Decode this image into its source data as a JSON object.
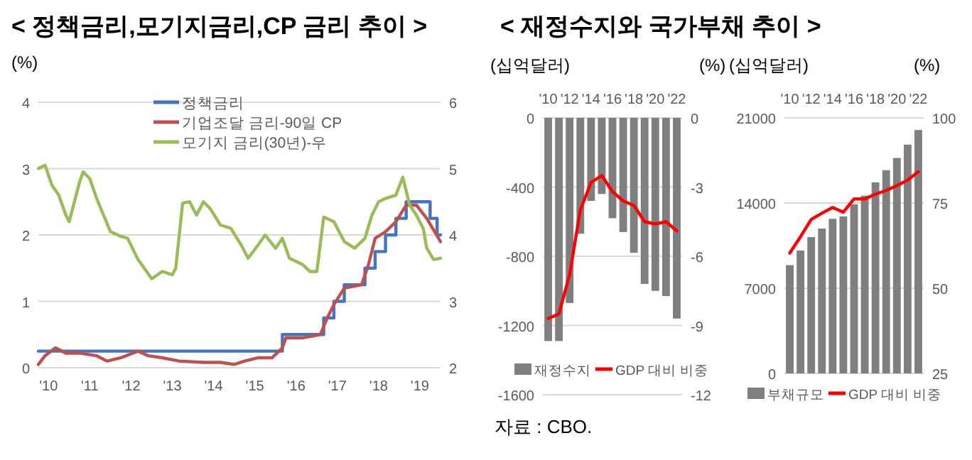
{
  "chart_data": [
    {
      "type": "line",
      "title": "< 정책금리,모기지금리,CP 금리 추이 >",
      "ylabel": "(%)",
      "xlim": [
        "2010-01",
        "2019-10"
      ],
      "xticks": [
        {
          "value": "2010-04",
          "label": "'10"
        },
        {
          "value": "2011-04",
          "label": "'11"
        },
        {
          "value": "2012-04",
          "label": "'12"
        },
        {
          "value": "2013-04",
          "label": "'13"
        },
        {
          "value": "2014-04",
          "label": "'14"
        },
        {
          "value": "2015-04",
          "label": "'15"
        },
        {
          "value": "2016-04",
          "label": "'16"
        },
        {
          "value": "2017-04",
          "label": "'17"
        },
        {
          "value": "2018-04",
          "label": "'18"
        },
        {
          "value": "2019-04",
          "label": "'19"
        }
      ],
      "ylim": [
        0,
        4
      ],
      "yticks": [
        0,
        1,
        2,
        3,
        4
      ],
      "y2lim": [
        2,
        6
      ],
      "y2ticks": [
        2,
        3,
        4,
        5,
        6
      ],
      "grid": "y",
      "legend": "top",
      "series": [
        {
          "name": "정책금리",
          "type": "step",
          "color": "#4472c4",
          "x": [
            "2010-01",
            "2015-12",
            "2016-12",
            "2017-03",
            "2017-06",
            "2017-12",
            "2018-03",
            "2018-06",
            "2018-09",
            "2018-12",
            "2019-07",
            "2019-09",
            "2019-10"
          ],
          "values": [
            0.25,
            0.5,
            0.75,
            1.0,
            1.25,
            1.5,
            1.75,
            2.0,
            2.25,
            2.5,
            2.25,
            2.0,
            2.0
          ]
        },
        {
          "name": "기업조달 금리-90일 CP",
          "color": "#c0504d",
          "x": [
            "2010-01",
            "2010-03",
            "2010-06",
            "2010-09",
            "2011-01",
            "2011-06",
            "2011-09",
            "2012-01",
            "2012-06",
            "2012-09",
            "2013-01",
            "2013-06",
            "2014-01",
            "2014-06",
            "2014-10",
            "2015-01",
            "2015-05",
            "2015-09",
            "2015-11",
            "2015-12",
            "2016-01",
            "2016-06",
            "2016-11",
            "2017-01",
            "2017-03",
            "2017-06",
            "2017-11",
            "2018-01",
            "2018-03",
            "2018-06",
            "2018-09",
            "2018-12",
            "2019-03",
            "2019-06",
            "2019-10"
          ],
          "values": [
            0.05,
            0.18,
            0.3,
            0.22,
            0.22,
            0.18,
            0.1,
            0.15,
            0.25,
            0.18,
            0.15,
            0.1,
            0.08,
            0.08,
            0.05,
            0.1,
            0.15,
            0.15,
            0.25,
            0.3,
            0.45,
            0.45,
            0.5,
            0.75,
            0.95,
            1.2,
            1.25,
            1.55,
            1.95,
            2.05,
            2.2,
            2.45,
            2.45,
            2.25,
            1.9
          ]
        },
        {
          "name": "모기지 금리(30년)-우",
          "axis": "y2",
          "color": "#9bbb59",
          "x": [
            "2010-01",
            "2010-03",
            "2010-05",
            "2010-07",
            "2010-09",
            "2010-10",
            "2011-01",
            "2011-02",
            "2011-04",
            "2011-06",
            "2011-08",
            "2011-10",
            "2012-01",
            "2012-03",
            "2012-06",
            "2012-10",
            "2013-01",
            "2013-04",
            "2013-05",
            "2013-07",
            "2013-09",
            "2013-11",
            "2014-01",
            "2014-03",
            "2014-06",
            "2014-09",
            "2014-12",
            "2015-02",
            "2015-05",
            "2015-07",
            "2015-10",
            "2015-12",
            "2016-02",
            "2016-06",
            "2016-08",
            "2016-10",
            "2016-12",
            "2017-03",
            "2017-06",
            "2017-09",
            "2017-12",
            "2018-02",
            "2018-04",
            "2018-06",
            "2018-09",
            "2018-11",
            "2019-01",
            "2019-03",
            "2019-05",
            "2019-06",
            "2019-08",
            "2019-10"
          ],
          "values": [
            5.0,
            5.05,
            4.75,
            4.6,
            4.3,
            4.2,
            4.8,
            4.95,
            4.85,
            4.55,
            4.3,
            4.05,
            3.98,
            3.95,
            3.63,
            3.34,
            3.45,
            3.4,
            3.5,
            4.48,
            4.5,
            4.3,
            4.5,
            4.4,
            4.15,
            4.1,
            3.85,
            3.65,
            3.85,
            4.0,
            3.8,
            3.95,
            3.65,
            3.55,
            3.45,
            3.45,
            4.27,
            4.2,
            3.9,
            3.8,
            3.95,
            4.3,
            4.5,
            4.55,
            4.6,
            4.87,
            4.45,
            4.3,
            4.1,
            3.8,
            3.63,
            3.65
          ]
        }
      ]
    },
    {
      "type": "bar",
      "title": "< 재정수지와 국가부채 추이 >",
      "ylabel": "(십억달러)",
      "y2label": "(%)",
      "categories": [
        "'10",
        null,
        "'12",
        null,
        "'14",
        null,
        "'16",
        null,
        "'18",
        null,
        "'20",
        null,
        "'22"
      ],
      "ylim": [
        -1600,
        0
      ],
      "yticks": [
        -1600,
        -1200,
        -800,
        -400,
        0
      ],
      "y2lim": [
        -12,
        0
      ],
      "y2ticks": [
        -12,
        -9,
        -6,
        -3,
        0
      ],
      "grid": "y",
      "legend": "bottom",
      "annotations": [
        "자료 : CBO."
      ],
      "series": [
        {
          "name": "재정수지",
          "color": "#7f7f7f",
          "values": [
            -1290,
            -1290,
            -1070,
            -670,
            -480,
            -440,
            -580,
            -660,
            -780,
            -960,
            -1000,
            -1030,
            -1160
          ]
        },
        {
          "name": "GDP 대비 비중",
          "type": "line",
          "axis": "y2",
          "color": "#ff0000",
          "values": [
            -8.7,
            -8.5,
            -6.8,
            -4.0,
            -2.8,
            -2.5,
            -3.2,
            -3.6,
            -3.8,
            -4.5,
            -4.6,
            -4.5,
            -4.9
          ]
        }
      ]
    },
    {
      "type": "bar",
      "categories": [
        "'10",
        null,
        "'12",
        null,
        "'14",
        null,
        "'16",
        null,
        "'18",
        null,
        "'20",
        null,
        "'22"
      ],
      "ylabel": "(십억달러)",
      "y2label": "(%)",
      "ylim": [
        0,
        21000
      ],
      "yticks": [
        0,
        7000,
        14000,
        21000
      ],
      "y2lim": [
        25,
        100
      ],
      "y2ticks": [
        25,
        50,
        75,
        100
      ],
      "grid": "y",
      "legend": "bottom",
      "series": [
        {
          "name": "부채규모",
          "color": "#7f7f7f",
          "values": [
            8900,
            10100,
            11200,
            11900,
            12700,
            12900,
            13900,
            14600,
            15700,
            16700,
            17700,
            18800,
            20000
          ]
        },
        {
          "name": "GDP 대비 비중",
          "type": "line",
          "axis": "y2",
          "color": "#ff0000",
          "values": [
            60.3,
            65.1,
            70.2,
            72.0,
            73.7,
            72.3,
            76.2,
            76.2,
            77.6,
            78.7,
            80.1,
            81.7,
            84.2
          ]
        }
      ]
    }
  ]
}
